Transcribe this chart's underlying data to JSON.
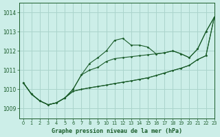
{
  "title": "Graphe pression niveau de la mer (hPa)",
  "background_color": "#cceee8",
  "grid_color": "#aad4cc",
  "line_color": "#1a5c2a",
  "ylim": [
    1008.5,
    1014.5
  ],
  "xlim": [
    -0.5,
    23
  ],
  "yticks": [
    1009,
    1010,
    1011,
    1012,
    1013,
    1014
  ],
  "xticks": [
    0,
    1,
    2,
    3,
    4,
    5,
    6,
    7,
    8,
    9,
    10,
    11,
    12,
    13,
    14,
    15,
    16,
    17,
    18,
    19,
    20,
    21,
    22,
    23
  ],
  "series": [
    {
      "x": [
        0,
        1,
        2,
        3,
        4,
        5,
        6,
        7,
        8,
        9,
        10,
        11,
        12,
        13,
        14,
        15,
        16,
        17,
        18,
        19,
        20,
        21,
        22,
        23
      ],
      "y": [
        1010.35,
        1009.75,
        1009.4,
        1009.2,
        1009.3,
        1009.55,
        1010.0,
        1010.75,
        1011.35,
        1011.65,
        1012.0,
        1012.55,
        1012.65,
        1012.3,
        1012.3,
        1012.2,
        1011.85,
        1011.9,
        1012.0,
        1011.85,
        1011.65,
        1012.1,
        1013.0,
        1013.75
      ],
      "marker": true
    },
    {
      "x": [
        0,
        1,
        2,
        3,
        4,
        5,
        6,
        7,
        8,
        9,
        10,
        11,
        12,
        13,
        14,
        15,
        16,
        17,
        18,
        19,
        20,
        21,
        22,
        23
      ],
      "y": [
        1010.35,
        1009.75,
        1009.4,
        1009.2,
        1009.3,
        1009.55,
        1010.0,
        1010.75,
        1011.0,
        1011.15,
        1011.45,
        1011.6,
        1011.65,
        1011.7,
        1011.75,
        1011.8,
        1011.85,
        1011.9,
        1012.0,
        1011.85,
        1011.65,
        1012.1,
        1013.0,
        1013.75
      ],
      "marker": true
    },
    {
      "x": [
        0,
        1,
        2,
        3,
        4,
        5,
        6,
        7,
        8,
        9,
        10,
        11,
        12,
        13,
        14,
        15,
        16,
        17,
        18,
        19,
        20,
        21,
        22,
        23
      ],
      "y": [
        1010.35,
        1009.75,
        1009.4,
        1009.2,
        1009.3,
        1009.55,
        1009.9,
        1010.0,
        1010.08,
        1010.15,
        1010.22,
        1010.3,
        1010.37,
        1010.44,
        1010.52,
        1010.6,
        1010.72,
        1010.85,
        1010.98,
        1011.1,
        1011.25,
        1011.55,
        1011.75,
        1013.75
      ],
      "marker": true
    },
    {
      "x": [
        0,
        1,
        2,
        3,
        4,
        5,
        6,
        7,
        8,
        9,
        10,
        11,
        12,
        13,
        14,
        15,
        16,
        17,
        18,
        19,
        20,
        21,
        22,
        23
      ],
      "y": [
        1010.35,
        1009.75,
        1009.4,
        1009.2,
        1009.3,
        1009.55,
        1009.9,
        1010.0,
        1010.08,
        1010.15,
        1010.22,
        1010.3,
        1010.37,
        1010.44,
        1010.52,
        1010.6,
        1010.72,
        1010.85,
        1010.98,
        1011.1,
        1011.25,
        1011.55,
        1011.75,
        1013.75
      ],
      "marker": false
    }
  ]
}
